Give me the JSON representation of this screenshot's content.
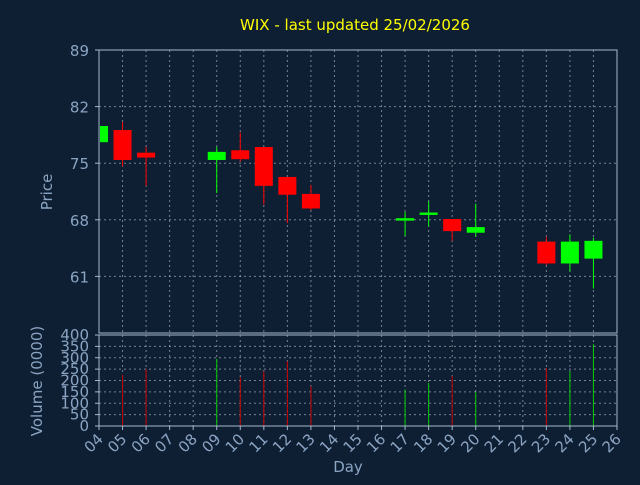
{
  "colors": {
    "background": "#0f1f33",
    "plot_background": "#0f1f33",
    "axis": "#a6b8cc",
    "grid": "#c8d2dc",
    "title": "#ffff00",
    "label": "#8aa4c2",
    "up": "#00ff00",
    "down": "#ff0000",
    "vol_up": "#00cc00",
    "vol_down": "#cc0000"
  },
  "chart_data": {
    "type": "candlestick",
    "title": "WIX - last updated 25/02/2026",
    "xlabel": "Day",
    "price_panel": {
      "ylabel": "Price",
      "ylim": [
        54,
        89
      ],
      "yticks": [
        "89",
        "82",
        "75",
        "68",
        "61"
      ],
      "ytick_values": [
        89,
        82,
        75,
        68,
        61
      ],
      "grid": true
    },
    "volume_panel": {
      "ylabel": "Volume (0000)",
      "ylim": [
        0,
        400
      ],
      "yticks": [
        "400",
        "350",
        "300",
        "250",
        "200",
        "150",
        "100",
        "50",
        "0"
      ],
      "ytick_values": [
        400,
        350,
        300,
        250,
        200,
        150,
        100,
        50,
        0
      ],
      "grid": true
    },
    "x_ticks": [
      "04",
      "05",
      "06",
      "07",
      "08",
      "09",
      "10",
      "11",
      "12",
      "13",
      "14",
      "15",
      "16",
      "17",
      "18",
      "19",
      "20",
      "21",
      "22",
      "23",
      "24",
      "25",
      "26"
    ],
    "x_tick_values": [
      4,
      5,
      6,
      7,
      8,
      9,
      10,
      11,
      12,
      13,
      14,
      15,
      16,
      17,
      18,
      19,
      20,
      21,
      22,
      23,
      24,
      25,
      26
    ],
    "xlim": [
      4,
      26
    ],
    "candles": [
      {
        "day": 4,
        "open": 77.6,
        "high": 79.6,
        "low": 77.5,
        "close": 79.6,
        "volume": 310
      },
      {
        "day": 5,
        "open": 79.1,
        "high": 80.1,
        "low": 74.6,
        "close": 75.4,
        "volume": 225
      },
      {
        "day": 6,
        "open": 76.3,
        "high": 77.0,
        "low": 72.2,
        "close": 75.7,
        "volume": 250
      },
      {
        "day": 9,
        "open": 75.4,
        "high": 77.0,
        "low": 71.3,
        "close": 76.4,
        "volume": 295
      },
      {
        "day": 10,
        "open": 76.6,
        "high": 78.8,
        "low": 75.2,
        "close": 75.5,
        "volume": 215
      },
      {
        "day": 11,
        "open": 77.0,
        "high": 77.0,
        "low": 69.9,
        "close": 72.2,
        "volume": 240
      },
      {
        "day": 12,
        "open": 73.3,
        "high": 73.3,
        "low": 67.6,
        "close": 71.1,
        "volume": 285
      },
      {
        "day": 13,
        "open": 71.2,
        "high": 72.3,
        "low": 69.2,
        "close": 69.4,
        "volume": 175
      },
      {
        "day": 17,
        "open": 67.9,
        "high": 69.0,
        "low": 66.0,
        "close": 68.2,
        "volume": 160
      },
      {
        "day": 18,
        "open": 68.6,
        "high": 70.3,
        "low": 67.2,
        "close": 68.9,
        "volume": 190
      },
      {
        "day": 19,
        "open": 68.1,
        "high": 68.1,
        "low": 65.4,
        "close": 66.6,
        "volume": 220
      },
      {
        "day": 20,
        "open": 66.4,
        "high": 70.0,
        "low": 65.9,
        "close": 67.1,
        "volume": 150
      },
      {
        "day": 23,
        "open": 65.3,
        "high": 65.9,
        "low": 62.4,
        "close": 62.6,
        "volume": 255
      },
      {
        "day": 24,
        "open": 62.6,
        "high": 66.2,
        "low": 61.6,
        "close": 65.3,
        "volume": 240
      },
      {
        "day": 25,
        "open": 63.2,
        "high": 65.8,
        "low": 59.5,
        "close": 65.4,
        "volume": 360
      }
    ]
  }
}
